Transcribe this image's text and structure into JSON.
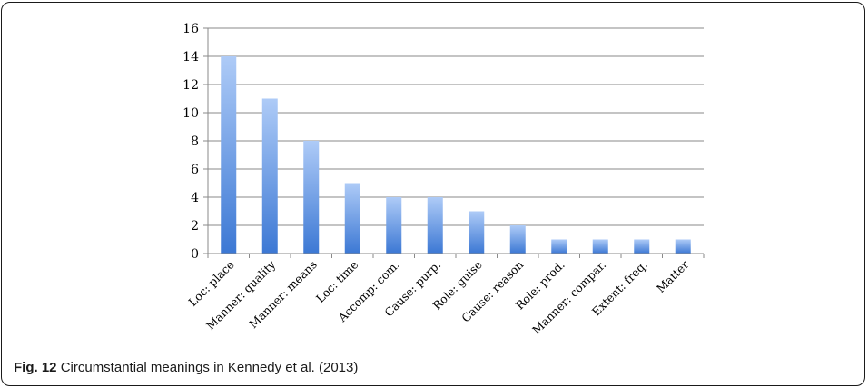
{
  "caption": {
    "label": "Fig. 12",
    "text": "Circumstantial meanings in Kennedy et al. (2013)"
  },
  "chart_data": {
    "type": "bar",
    "categories": [
      "Loc: place",
      "Manner: quality",
      "Manner: means",
      "Loc: time",
      "Accomp: com.",
      "Cause: purp.",
      "Role: guise",
      "Cause: reason",
      "Role: prod.",
      "Manner: compar.",
      "Extent: freq.",
      "Matter"
    ],
    "values": [
      14,
      11,
      8,
      5,
      4,
      4,
      3,
      2,
      1,
      1,
      1,
      1
    ],
    "ylim": [
      0,
      16
    ],
    "yticks": [
      0,
      2,
      4,
      6,
      8,
      10,
      12,
      14,
      16
    ],
    "grid": true,
    "legend": "none",
    "bar_color_top": "#aecbf7",
    "bar_color_bottom": "#3c78d4"
  }
}
